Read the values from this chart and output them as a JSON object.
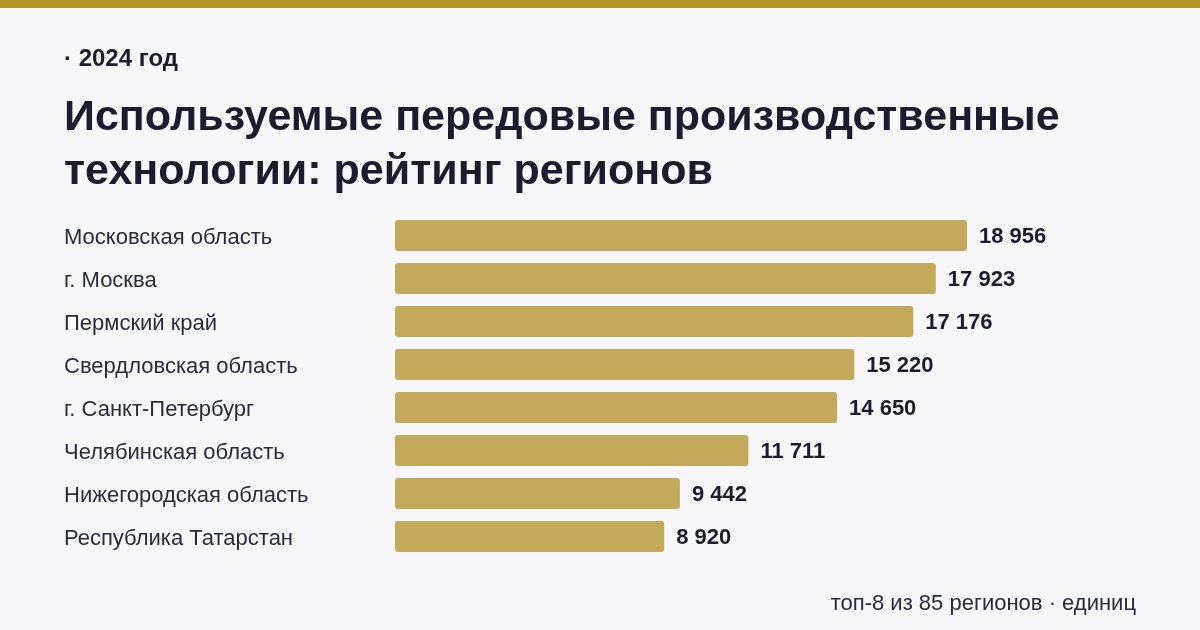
{
  "chart_data": {
    "type": "bar",
    "orientation": "horizontal",
    "subtitle": "· 2024 год",
    "title": "Используемые передовые производственные технологии: рейтинг регионов",
    "categories": [
      "Московская область",
      "г. Москва",
      "Пермский край",
      "Свердловская область",
      "г. Санкт-Петербург",
      "Челябинская область",
      "Нижегородская область",
      "Республика Татарстан"
    ],
    "values": [
      18956,
      17923,
      17176,
      15220,
      14650,
      11711,
      9442,
      8920
    ],
    "value_labels": [
      "18 956",
      "17 923",
      "17 176",
      "15 220",
      "14 650",
      "11 711",
      "9 442",
      "8 920"
    ],
    "color": "#c4a95b",
    "grid": false,
    "legend": false,
    "annotations": [
      "топ-8 из 85 регионов · единиц"
    ]
  }
}
